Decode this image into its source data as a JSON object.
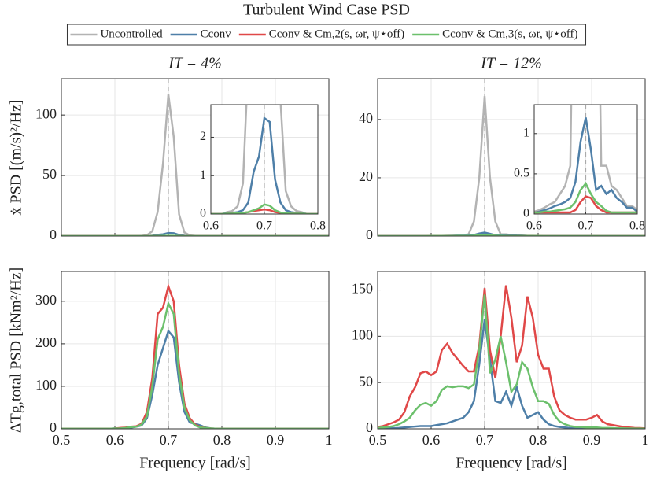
{
  "chart_data": {
    "type": "line",
    "title": "Turbulent Wind Case PSD",
    "legend": {
      "position": "top",
      "entries": [
        {
          "name": "Uncontrolled",
          "color": "#b3b3b3"
        },
        {
          "name": "Cconv",
          "color": "#4e7fa8"
        },
        {
          "name": "Cconv & Cm,2(s, ωr, ψ⋆off)",
          "color": "#e04848"
        },
        {
          "name": "Cconv & Cm,3(s, ωr, ψ⋆off)",
          "color": "#6cc06c"
        }
      ]
    },
    "x": [
      0.5,
      0.51,
      0.52,
      0.53,
      0.54,
      0.55,
      0.56,
      0.57,
      0.58,
      0.59,
      0.6,
      0.61,
      0.62,
      0.63,
      0.64,
      0.65,
      0.66,
      0.67,
      0.68,
      0.69,
      0.7,
      0.71,
      0.72,
      0.73,
      0.74,
      0.75,
      0.76,
      0.77,
      0.78,
      0.79,
      0.8,
      0.81,
      0.82,
      0.83,
      0.84,
      0.85,
      0.86,
      0.87,
      0.88,
      0.89,
      0.9,
      0.91,
      0.92,
      0.93,
      0.94,
      0.95,
      0.96,
      0.97,
      0.98,
      0.99,
      1
    ],
    "xlim": [
      0.5,
      1
    ],
    "xticks": [
      0.5,
      0.6,
      0.7,
      0.8,
      0.9,
      1
    ],
    "xlabel": "Frequency [rad/s]",
    "vline": 0.7,
    "grid": true,
    "row_labels": [
      "ẋ PSD [(m/s)²/Hz]",
      "ΔTg,total PSD [kNm²/Hz]"
    ],
    "panels": [
      {
        "title": "IT = 4%",
        "ylim": [
          0,
          130
        ],
        "yticks": [
          0,
          50,
          100
        ],
        "inset": {
          "xlim": [
            0.6,
            0.8
          ],
          "xticks": [
            0.6,
            0.7,
            0.8
          ],
          "ylim": [
            0,
            2.85
          ],
          "yticks": [
            0,
            1,
            2
          ]
        },
        "series": [
          {
            "entry": 0,
            "values": [
              0,
              0,
              0,
              0,
              0,
              0,
              0,
              0,
              0,
              0,
              0,
              0,
              0,
              0.05,
              0.08,
              0.2,
              0.8,
              4,
              20,
              60,
              117,
              82,
              18,
              3,
              0.6,
              0.2,
              0.08,
              0.05,
              0,
              0,
              0,
              0,
              0,
              0,
              0,
              0,
              0,
              0,
              0,
              0,
              0,
              0,
              0,
              0,
              0,
              0,
              0,
              0,
              0,
              0,
              0
            ]
          },
          {
            "entry": 1,
            "values": [
              0,
              0,
              0,
              0,
              0,
              0,
              0,
              0,
              0,
              0,
              0,
              0,
              0,
              0.02,
              0.03,
              0.05,
              0.1,
              0.3,
              1.1,
              1.5,
              2.5,
              2.4,
              0.9,
              0.3,
              0.1,
              0.05,
              0.03,
              0.02,
              0,
              0,
              0,
              0,
              0,
              0,
              0,
              0,
              0,
              0,
              0,
              0,
              0,
              0,
              0,
              0,
              0,
              0,
              0,
              0,
              0,
              0,
              0
            ]
          },
          {
            "entry": 2,
            "values": [
              0,
              0,
              0,
              0,
              0,
              0,
              0,
              0,
              0,
              0,
              0,
              0,
              0,
              0.01,
              0.01,
              0.02,
              0.03,
              0.05,
              0.08,
              0.1,
              0.12,
              0.1,
              0.05,
              0.03,
              0.02,
              0.01,
              0.01,
              0.01,
              0,
              0,
              0,
              0,
              0,
              0,
              0,
              0,
              0,
              0,
              0,
              0,
              0,
              0,
              0,
              0,
              0,
              0,
              0,
              0,
              0,
              0,
              0
            ]
          },
          {
            "entry": 3,
            "values": [
              0,
              0,
              0,
              0,
              0,
              0,
              0,
              0,
              0,
              0,
              0,
              0,
              0,
              0.01,
              0.01,
              0.02,
              0.03,
              0.05,
              0.1,
              0.15,
              0.25,
              0.22,
              0.1,
              0.04,
              0.02,
              0.01,
              0.01,
              0.01,
              0,
              0,
              0,
              0,
              0,
              0,
              0,
              0,
              0,
              0,
              0,
              0,
              0,
              0,
              0,
              0,
              0,
              0,
              0,
              0,
              0,
              0,
              0
            ]
          }
        ]
      },
      {
        "title": "IT = 12%",
        "ylim": [
          0,
          54
        ],
        "yticks": [
          0,
          20,
          40
        ],
        "inset": {
          "xlim": [
            0.6,
            0.8
          ],
          "xticks": [
            0.6,
            0.7,
            0.8
          ],
          "ylim": [
            0,
            1.36
          ],
          "yticks": [
            0,
            0.5,
            1
          ]
        },
        "series": [
          {
            "entry": 0,
            "values": [
              0.01,
              0.01,
              0.01,
              0.01,
              0.01,
              0.01,
              0.01,
              0.01,
              0.01,
              0.01,
              0.03,
              0.05,
              0.08,
              0.12,
              0.15,
              0.25,
              0.35,
              0.6,
              5,
              20,
              48,
              20,
              5,
              0.6,
              0.6,
              0.35,
              0.3,
              0.2,
              0.1,
              0.1,
              0.05,
              0.01,
              0.01,
              0.01,
              0.01,
              0.01,
              0.01,
              0.01,
              0.01,
              0.01,
              0.01,
              0.01,
              0.01,
              0.01,
              0.01,
              0.01,
              0.01,
              0.01,
              0.01,
              0.01,
              0.01
            ]
          },
          {
            "entry": 1,
            "values": [
              0.01,
              0.01,
              0.01,
              0.01,
              0.01,
              0.01,
              0.01,
              0.01,
              0.01,
              0.01,
              0.02,
              0.03,
              0.05,
              0.07,
              0.1,
              0.12,
              0.15,
              0.2,
              0.4,
              0.9,
              1.2,
              0.8,
              0.3,
              0.35,
              0.25,
              0.3,
              0.2,
              0.15,
              0.08,
              0.08,
              0.03,
              0.01,
              0.01,
              0.01,
              0.01,
              0.01,
              0.01,
              0.01,
              0.01,
              0.01,
              0.01,
              0.01,
              0.01,
              0.01,
              0.01,
              0.01,
              0.01,
              0.01,
              0.01,
              0.01,
              0.01
            ]
          },
          {
            "entry": 2,
            "values": [
              0.01,
              0.01,
              0.01,
              0.01,
              0.01,
              0.01,
              0.01,
              0.01,
              0.01,
              0.01,
              0.02,
              0.02,
              0.02,
              0.02,
              0.02,
              0.02,
              0.02,
              0.02,
              0.05,
              0.15,
              0.22,
              0.2,
              0.1,
              0.05,
              0.02,
              0.02,
              0.02,
              0.02,
              0.02,
              0.02,
              0.02,
              0.01,
              0.01,
              0.01,
              0.01,
              0.01,
              0.01,
              0.01,
              0.01,
              0.01,
              0.01,
              0.01,
              0.01,
              0.01,
              0.01,
              0.01,
              0.01,
              0.01,
              0.01,
              0.01,
              0.01
            ]
          },
          {
            "entry": 3,
            "values": [
              0.01,
              0.01,
              0.01,
              0.01,
              0.01,
              0.01,
              0.01,
              0.01,
              0.01,
              0.01,
              0.02,
              0.02,
              0.03,
              0.03,
              0.04,
              0.05,
              0.06,
              0.08,
              0.15,
              0.3,
              0.38,
              0.25,
              0.15,
              0.1,
              0.04,
              0.02,
              0.02,
              0.02,
              0.02,
              0.02,
              0.02,
              0.01,
              0.01,
              0.01,
              0.01,
              0.01,
              0.01,
              0.01,
              0.01,
              0.01,
              0.01,
              0.01,
              0.01,
              0.01,
              0.01,
              0.01,
              0.01,
              0.01,
              0.01,
              0.01,
              0.01
            ]
          }
        ]
      },
      {
        "ylim": [
          0,
          370
        ],
        "yticks": [
          0,
          100,
          200,
          300
        ],
        "series": [
          {
            "entry": 1,
            "values": [
              0.2,
              0.2,
              0.2,
              0.2,
              0.2,
              0.2,
              0.2,
              0.2,
              0.2,
              0.2,
              1,
              1,
              2,
              3,
              5,
              8,
              25,
              80,
              150,
              190,
              230,
              215,
              110,
              40,
              15,
              12,
              8,
              3,
              1,
              0.2,
              0.2,
              0.2,
              0.2,
              0.2,
              0.2,
              0.2,
              0.2,
              0.2,
              0.2,
              0.2,
              0.2,
              0.2,
              0.2,
              0.2,
              0.2,
              0.2,
              0.2,
              0.2,
              0.2,
              0.2,
              0.2
            ]
          },
          {
            "entry": 2,
            "values": [
              0.3,
              0.3,
              0.3,
              0.3,
              0.3,
              0.3,
              0.3,
              0.3,
              0.3,
              0.3,
              1,
              2,
              3,
              5,
              6,
              12,
              40,
              120,
              270,
              285,
              335,
              300,
              150,
              60,
              25,
              10,
              4,
              2,
              1,
              0.3,
              0.3,
              0.3,
              0.3,
              0.3,
              0.3,
              0.3,
              0.3,
              0.3,
              0.3,
              0.3,
              0.3,
              0.3,
              0.3,
              0.3,
              0.3,
              0.3,
              0.3,
              0.3,
              0.3,
              0.3,
              0.3
            ]
          },
          {
            "entry": 3,
            "values": [
              0.3,
              0.3,
              0.3,
              0.3,
              0.3,
              0.3,
              0.3,
              0.3,
              0.3,
              0.3,
              1,
              1,
              2,
              4,
              5,
              10,
              30,
              100,
              210,
              240,
              295,
              270,
              130,
              50,
              20,
              8,
              3,
              2,
              1,
              0.3,
              0.3,
              0.3,
              0.3,
              0.3,
              0.3,
              0.3,
              0.3,
              0.3,
              0.3,
              0.3,
              0.3,
              0.3,
              0.3,
              0.3,
              0.3,
              0.3,
              0.3,
              0.3,
              0.3,
              0.3,
              0.3
            ]
          }
        ]
      },
      {
        "ylim": [
          0,
          170
        ],
        "yticks": [
          0,
          50,
          100,
          150
        ],
        "series": [
          {
            "entry": 1,
            "values": [
              0.3,
              0.4,
              0.5,
              0.7,
              1,
              1.5,
              2,
              2.5,
              3,
              3,
              3,
              4,
              5,
              6,
              8,
              10,
              12,
              18,
              30,
              70,
              118,
              75,
              30,
              28,
              40,
              25,
              45,
              25,
              12,
              15,
              18,
              10,
              5,
              3,
              2,
              1.5,
              1,
              0.8,
              0.6,
              0.5,
              0.5,
              0.4,
              0.3,
              0.3,
              0.2,
              0.2,
              0.2,
              0.1,
              0.1,
              0.1,
              0.1
            ]
          },
          {
            "entry": 2,
            "values": [
              2,
              3,
              5,
              7,
              10,
              18,
              35,
              45,
              60,
              62,
              58,
              62,
              85,
              92,
              82,
              75,
              68,
              62,
              62,
              90,
              152,
              85,
              55,
              100,
              155,
              120,
              72,
              90,
              143,
              120,
              80,
              65,
              65,
              35,
              20,
              15,
              12,
              10,
              10,
              10,
              12,
              15,
              8,
              5,
              4,
              3,
              2,
              1.5,
              1,
              0.8,
              0.5
            ]
          },
          {
            "entry": 3,
            "values": [
              1,
              1.5,
              2,
              3,
              5,
              8,
              12,
              20,
              26,
              28,
              25,
              30,
              42,
              46,
              45,
              46,
              46,
              44,
              48,
              85,
              145,
              60,
              75,
              100,
              72,
              40,
              48,
              72,
              65,
              45,
              30,
              30,
              27,
              15,
              8,
              5,
              3,
              2,
              2,
              1.5,
              1.5,
              1.5,
              1,
              1,
              0.8,
              0.6,
              0.5,
              0.4,
              0.3,
              0.3,
              0.2
            ]
          }
        ]
      }
    ]
  }
}
